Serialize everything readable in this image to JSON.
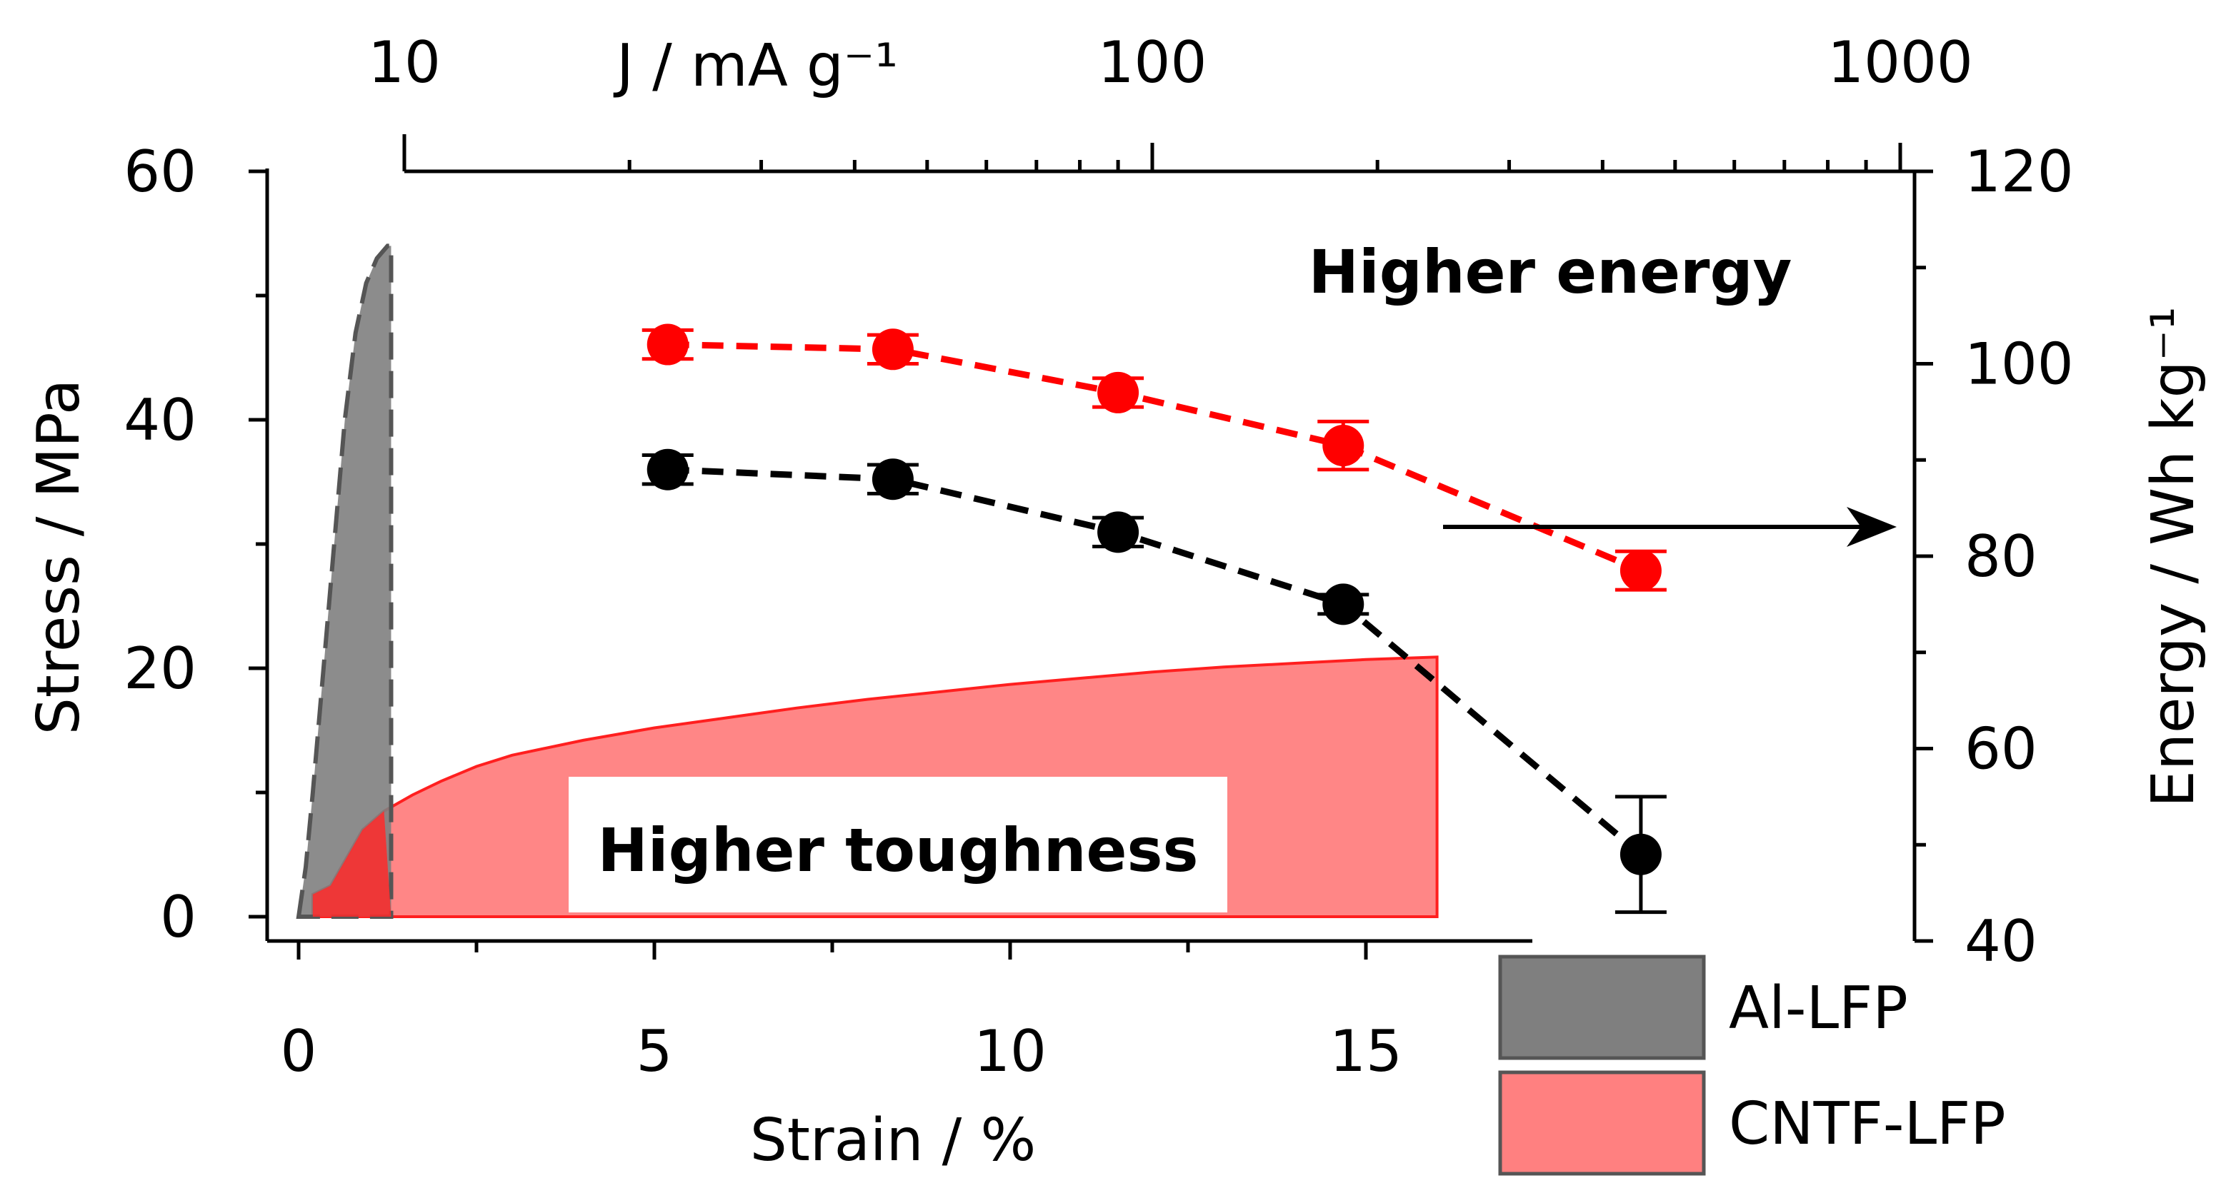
{
  "chart_data": {
    "type": "line",
    "bottom_axis": {
      "label": "Strain / %",
      "range": [
        -0.5,
        17.3
      ],
      "ticks": [
        0,
        5,
        10,
        15
      ],
      "tick_labels": [
        "0",
        "5",
        "10",
        "15"
      ],
      "minor_step": 2.5
    },
    "left_axis": {
      "label": "Stress / MPa",
      "range": [
        -2,
        60
      ],
      "ticks": [
        0,
        20,
        40,
        60
      ],
      "tick_labels": [
        "0",
        "20",
        "40",
        "60"
      ],
      "minor_step": 10
    },
    "top_axis": {
      "label": "J / mA g⁻¹",
      "scale": "log",
      "range": [
        10,
        1000
      ],
      "ticks": [
        10,
        100,
        1000
      ],
      "tick_labels": [
        "10",
        "100",
        "1000"
      ]
    },
    "right_axis": {
      "label": "Energy / Wh kg⁻¹",
      "range": [
        40,
        120
      ],
      "ticks": [
        40,
        60,
        80,
        100,
        120
      ],
      "tick_labels": [
        "40",
        "60",
        "80",
        "100",
        "120"
      ],
      "minor_step": 10
    },
    "stress_strain": [
      {
        "name": "Al-LFP",
        "color": "#7f7f7f",
        "edge_color": "#555555",
        "points": [
          [
            0,
            0
          ],
          [
            0.1,
            4
          ],
          [
            0.2,
            10
          ],
          [
            0.35,
            20
          ],
          [
            0.5,
            30
          ],
          [
            0.65,
            40
          ],
          [
            0.8,
            47
          ],
          [
            0.95,
            51
          ],
          [
            1.1,
            53
          ],
          [
            1.25,
            54
          ],
          [
            1.3,
            54
          ],
          [
            1.3,
            0
          ]
        ]
      },
      {
        "name": "CNTF-LFP",
        "color": "#ff8080",
        "edge_color": "#ff1f1f",
        "points": [
          [
            0.2,
            0
          ],
          [
            0.2,
            1.8
          ],
          [
            0.45,
            2.5
          ],
          [
            0.7,
            5
          ],
          [
            0.9,
            7
          ],
          [
            1.2,
            8.5
          ],
          [
            1.6,
            9.8
          ],
          [
            2,
            10.9
          ],
          [
            2.5,
            12.1
          ],
          [
            3,
            13
          ],
          [
            4,
            14.2
          ],
          [
            5,
            15.2
          ],
          [
            6,
            16
          ],
          [
            7,
            16.8
          ],
          [
            8,
            17.5
          ],
          [
            9,
            18.1
          ],
          [
            10,
            18.7
          ],
          [
            11,
            19.2
          ],
          [
            12,
            19.7
          ],
          [
            13,
            20.1
          ],
          [
            14,
            20.4
          ],
          [
            15,
            20.7
          ],
          [
            16,
            20.9
          ],
          [
            16,
            0
          ]
        ]
      }
    ],
    "energy_series": [
      {
        "name": "CNTF-LFP energy",
        "color": "#ff0000",
        "points": [
          {
            "j": 22.5,
            "energy": 102,
            "err": 1.5
          },
          {
            "j": 45,
            "energy": 101.5,
            "err": 1.5
          },
          {
            "j": 90,
            "energy": 97,
            "err": 1.5
          },
          {
            "j": 180,
            "energy": 91.5,
            "err": 2.5
          },
          {
            "j": 450,
            "energy": 78.5,
            "err": 2
          }
        ]
      },
      {
        "name": "Al-LFP energy",
        "color": "#000000",
        "points": [
          {
            "j": 22.5,
            "energy": 89,
            "err": 1.5
          },
          {
            "j": 45,
            "energy": 88,
            "err": 1.5
          },
          {
            "j": 90,
            "energy": 82.5,
            "err": 1.5
          },
          {
            "j": 180,
            "energy": 75,
            "err": 1
          },
          {
            "j": 450,
            "energy": 49,
            "err": 6
          }
        ]
      }
    ],
    "annotations": {
      "higher_energy": "Higher energy",
      "higher_toughness": "Higher toughness"
    },
    "arrow_target": "right-axis",
    "legend": {
      "position": "bottom-right",
      "entries": [
        {
          "label": "Al-LFP",
          "color": "#7f7f7f"
        },
        {
          "label": "CNTF-LFP",
          "color": "#ff8080"
        }
      ]
    }
  }
}
